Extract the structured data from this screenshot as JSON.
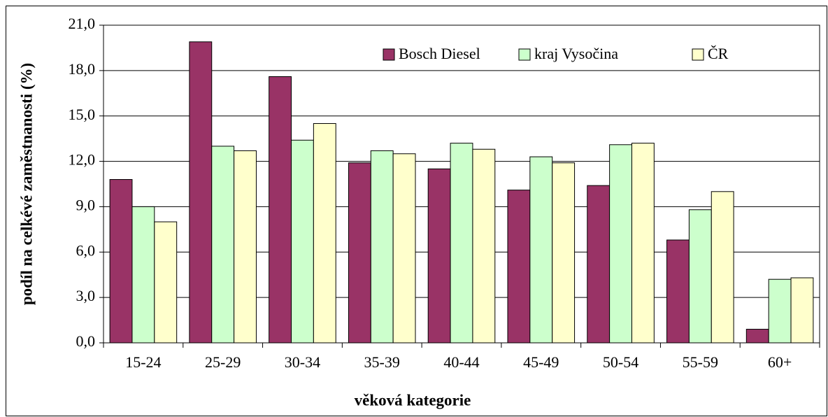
{
  "chart_data": {
    "type": "bar",
    "xlabel": "věková kategorie",
    "ylabel": "podíl na celkévé zaměstnanosti (%)",
    "categories": [
      "15-24",
      "25-29",
      "30-34",
      "35-39",
      "40-44",
      "45-49",
      "50-54",
      "55-59",
      "60+"
    ],
    "series": [
      {
        "name": "Bosch Diesel",
        "color": "#993366",
        "values": [
          10.8,
          19.9,
          17.6,
          11.9,
          11.5,
          10.1,
          10.4,
          6.8,
          0.9
        ]
      },
      {
        "name": "kraj Vysočina",
        "color": "#ccffcc",
        "values": [
          9.0,
          13.0,
          13.4,
          12.7,
          13.2,
          12.3,
          13.1,
          8.8,
          4.2
        ]
      },
      {
        "name": "ČR",
        "color": "#ffffcc",
        "values": [
          8.0,
          12.7,
          14.5,
          12.5,
          12.8,
          11.9,
          13.2,
          10.0,
          4.3
        ]
      }
    ],
    "ylim": [
      0,
      21
    ],
    "yticks": [
      {
        "value": 0,
        "label": "0,0"
      },
      {
        "value": 3,
        "label": "3,0"
      },
      {
        "value": 6,
        "label": "6,0"
      },
      {
        "value": 9,
        "label": "9,0"
      },
      {
        "value": 12,
        "label": "12,0"
      },
      {
        "value": 15,
        "label": "15,0"
      },
      {
        "value": 18,
        "label": "18,0"
      },
      {
        "value": 21,
        "label": "21,0"
      }
    ],
    "grid": true
  }
}
